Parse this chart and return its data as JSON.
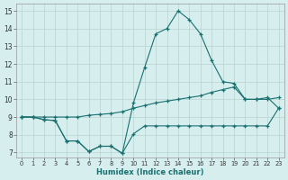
{
  "xlabel": "Humidex (Indice chaleur)",
  "bg_color": "#d6eeed",
  "grid_color": "#b8d4d0",
  "line_color": "#1a7070",
  "xlim_min": -0.5,
  "xlim_max": 23.5,
  "ylim_min": 6.7,
  "ylim_max": 15.4,
  "xticks": [
    0,
    1,
    2,
    3,
    4,
    5,
    6,
    7,
    8,
    9,
    10,
    11,
    12,
    13,
    14,
    15,
    16,
    17,
    18,
    19,
    20,
    21,
    22,
    23
  ],
  "yticks": [
    7,
    8,
    9,
    10,
    11,
    12,
    13,
    14,
    15
  ],
  "line1_x": [
    0,
    1,
    2,
    3,
    4,
    5,
    6,
    7,
    8,
    9,
    10,
    11,
    12,
    13,
    14,
    15,
    16,
    17,
    18,
    19,
    20,
    21,
    22,
    23
  ],
  "line1_y": [
    9.0,
    9.0,
    8.85,
    8.8,
    7.65,
    7.65,
    7.05,
    7.35,
    7.35,
    6.95,
    8.05,
    8.5,
    8.5,
    8.5,
    8.5,
    8.5,
    8.5,
    8.5,
    8.5,
    8.5,
    8.5,
    8.5,
    8.5,
    9.5
  ],
  "line2_x": [
    0,
    1,
    2,
    3,
    4,
    5,
    6,
    7,
    8,
    9,
    10,
    11,
    12,
    13,
    14,
    15,
    16,
    17,
    18,
    19,
    20,
    21,
    22,
    23
  ],
  "line2_y": [
    9.0,
    9.0,
    9.0,
    9.0,
    9.0,
    9.0,
    9.1,
    9.15,
    9.2,
    9.3,
    9.5,
    9.65,
    9.8,
    9.9,
    10.0,
    10.1,
    10.2,
    10.4,
    10.55,
    10.7,
    10.0,
    10.0,
    10.0,
    10.1
  ],
  "line3_x": [
    0,
    1,
    2,
    3,
    4,
    5,
    6,
    7,
    8,
    9,
    10,
    11,
    12,
    13,
    14,
    15,
    16,
    17,
    18,
    19,
    20,
    21,
    22,
    23
  ],
  "line3_y": [
    9.0,
    9.0,
    8.85,
    8.8,
    7.65,
    7.65,
    7.05,
    7.35,
    7.35,
    6.95,
    9.8,
    11.8,
    13.7,
    14.0,
    15.0,
    14.5,
    13.7,
    12.2,
    11.0,
    10.9,
    10.0,
    10.0,
    10.1,
    9.5
  ]
}
